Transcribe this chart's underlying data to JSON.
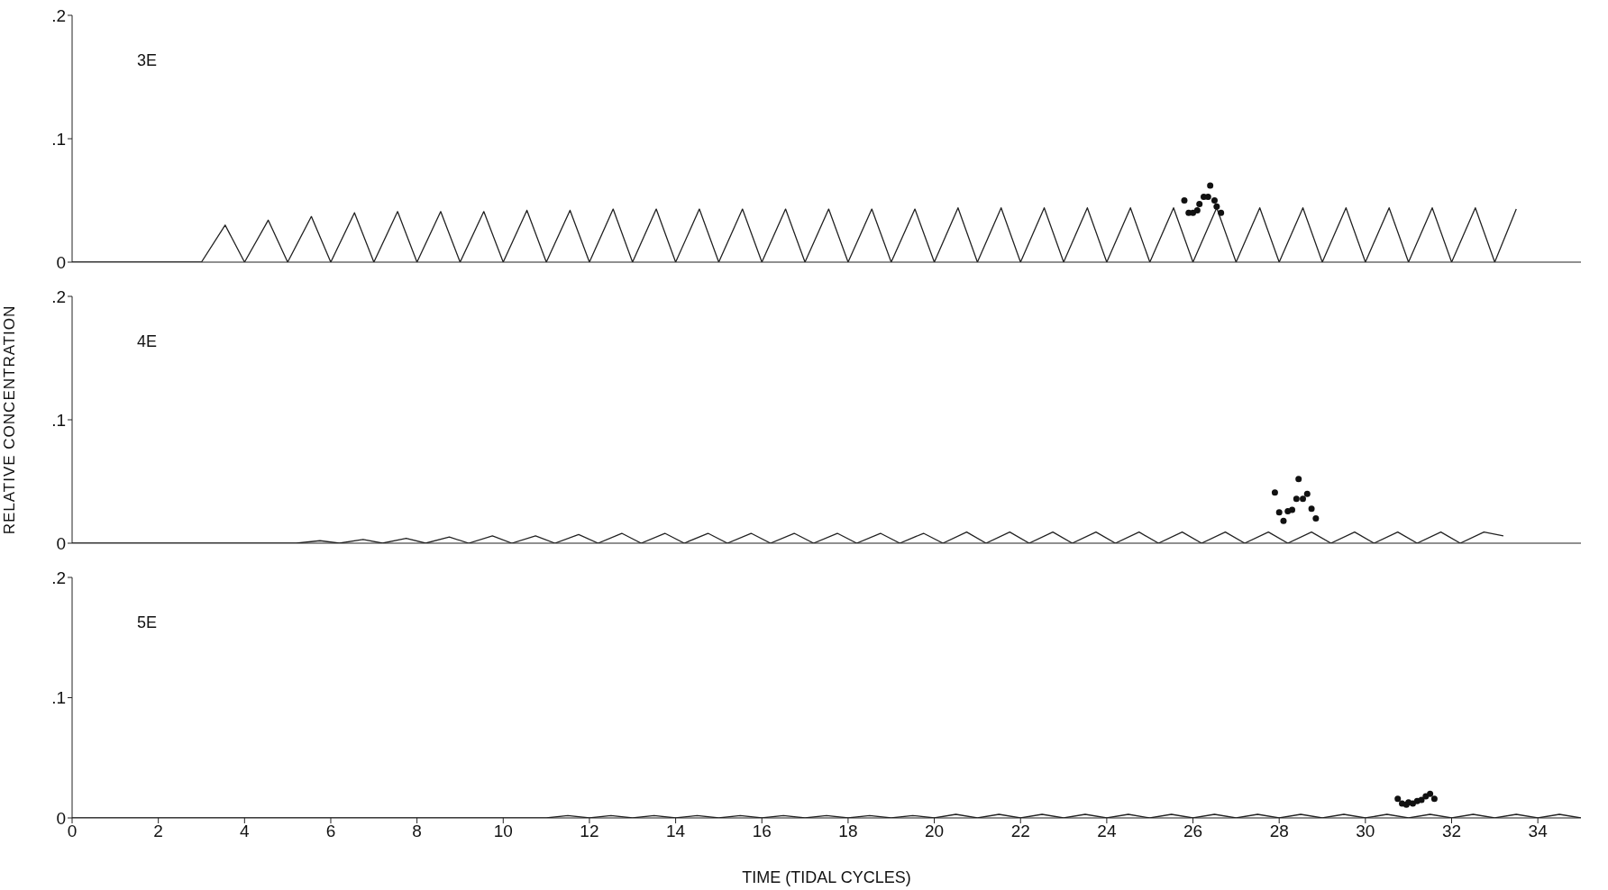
{
  "chart_data": [
    {
      "type": "line",
      "title": "3E",
      "xlim": [
        0,
        35
      ],
      "ylim": [
        0,
        0.2
      ],
      "yticks": [
        {
          "value": 0,
          "label": "0"
        },
        {
          "value": 0.1,
          "label": ".1"
        },
        {
          "value": 0.2,
          "label": ".2"
        }
      ],
      "tick_labels": "y",
      "series": [
        {
          "color": "#222222",
          "x": [
            0,
            3,
            3.55,
            4,
            4.55,
            5,
            5.55,
            6,
            6.55,
            7,
            7.55,
            8,
            8.55,
            9,
            9.55,
            10,
            10.55,
            11,
            11.55,
            12,
            12.55,
            13,
            13.55,
            14,
            14.55,
            15,
            15.55,
            16,
            16.55,
            17,
            17.55,
            18,
            18.55,
            19,
            19.55,
            20,
            20.55,
            21,
            21.55,
            22,
            22.55,
            23,
            23.55,
            24,
            24.55,
            25,
            25.55,
            26,
            26.55,
            27,
            27.55,
            28,
            28.55,
            29,
            29.55,
            30,
            30.55,
            31,
            31.55,
            32,
            32.55,
            33,
            33.5
          ],
          "values": [
            0,
            0,
            0.03,
            0,
            0.034,
            0,
            0.037,
            0,
            0.04,
            0,
            0.041,
            0,
            0.041,
            0,
            0.041,
            0,
            0.042,
            0,
            0.042,
            0,
            0.043,
            0,
            0.043,
            0,
            0.043,
            0,
            0.043,
            0,
            0.043,
            0,
            0.043,
            0,
            0.043,
            0,
            0.043,
            0,
            0.044,
            0,
            0.044,
            0,
            0.044,
            0,
            0.044,
            0,
            0.044,
            0,
            0.044,
            0,
            0.044,
            0,
            0.044,
            0,
            0.044,
            0,
            0.044,
            0,
            0.044,
            0,
            0.044,
            0,
            0.044,
            0,
            0.043
          ]
        },
        {
          "type": "scatter",
          "color": "#111111",
          "x": [
            25.8,
            25.9,
            26.0,
            26.1,
            26.15,
            26.25,
            26.35,
            26.4,
            26.5,
            26.55,
            26.65
          ],
          "values": [
            0.05,
            0.04,
            0.04,
            0.042,
            0.047,
            0.053,
            0.053,
            0.062,
            0.05,
            0.045,
            0.04
          ]
        }
      ]
    },
    {
      "type": "line",
      "title": "4E",
      "ylabel": "RELATIVE CONCENTRATION",
      "xlim": [
        0,
        35
      ],
      "ylim": [
        0,
        0.2
      ],
      "yticks": [
        {
          "value": 0,
          "label": "0"
        },
        {
          "value": 0.1,
          "label": ".1"
        },
        {
          "value": 0.2,
          "label": ".2"
        }
      ],
      "tick_labels": "y",
      "series": [
        {
          "color": "#222222",
          "x": [
            0,
            5.2,
            5.75,
            6.2,
            6.75,
            7.2,
            7.75,
            8.2,
            8.75,
            9.2,
            9.75,
            10.2,
            10.75,
            11.2,
            11.75,
            12.2,
            12.75,
            13.2,
            13.75,
            14.2,
            14.75,
            15.2,
            15.75,
            16.2,
            16.75,
            17.2,
            17.75,
            18.2,
            18.75,
            19.2,
            19.75,
            20.2,
            20.75,
            21.2,
            21.75,
            22.2,
            22.75,
            23.2,
            23.75,
            24.2,
            24.75,
            25.2,
            25.75,
            26.2,
            26.75,
            27.2,
            27.75,
            28.2,
            28.75,
            29.2,
            29.75,
            30.2,
            30.75,
            31.2,
            31.75,
            32.2,
            32.75,
            33.2
          ],
          "values": [
            0,
            0,
            0.002,
            0,
            0.003,
            0,
            0.004,
            0,
            0.005,
            0,
            0.006,
            0,
            0.006,
            0,
            0.007,
            0,
            0.008,
            0,
            0.008,
            0,
            0.008,
            0,
            0.008,
            0,
            0.008,
            0,
            0.008,
            0,
            0.008,
            0,
            0.008,
            0,
            0.009,
            0,
            0.009,
            0,
            0.009,
            0,
            0.009,
            0,
            0.009,
            0,
            0.009,
            0,
            0.009,
            0,
            0.009,
            0,
            0.009,
            0,
            0.009,
            0,
            0.009,
            0,
            0.009,
            0,
            0.009,
            0.006
          ]
        },
        {
          "type": "scatter",
          "color": "#111111",
          "x": [
            27.9,
            28.0,
            28.1,
            28.2,
            28.3,
            28.4,
            28.45,
            28.55,
            28.65,
            28.75,
            28.85
          ],
          "values": [
            0.041,
            0.025,
            0.018,
            0.026,
            0.027,
            0.036,
            0.052,
            0.036,
            0.04,
            0.028,
            0.02
          ]
        }
      ]
    },
    {
      "type": "line",
      "title": "5E",
      "xlabel": "TIME (TIDAL CYCLES)",
      "xlim": [
        0,
        35
      ],
      "xticks": [
        0,
        2,
        4,
        6,
        8,
        10,
        12,
        14,
        16,
        18,
        20,
        22,
        24,
        26,
        28,
        30,
        32,
        34
      ],
      "ylim": [
        0,
        0.2
      ],
      "yticks": [
        {
          "value": 0,
          "label": "0"
        },
        {
          "value": 0.1,
          "label": ".1"
        },
        {
          "value": 0.2,
          "label": ".2"
        }
      ],
      "series": [
        {
          "color": "#222222",
          "x": [
            0,
            11,
            11.5,
            12,
            12.5,
            13,
            13.5,
            14,
            14.5,
            15,
            15.5,
            16,
            16.5,
            17,
            17.5,
            18,
            18.5,
            19,
            19.5,
            20,
            20.5,
            21,
            21.5,
            22,
            22.5,
            23,
            23.5,
            24,
            24.5,
            25,
            25.5,
            26,
            26.5,
            27,
            27.5,
            28,
            28.5,
            29,
            29.5,
            30,
            30.5,
            31,
            31.5,
            32,
            32.5,
            33,
            33.5,
            34,
            34.5,
            35
          ],
          "values": [
            0,
            0,
            0.002,
            0,
            0.002,
            0,
            0.002,
            0,
            0.002,
            0,
            0.002,
            0,
            0.002,
            0,
            0.002,
            0,
            0.002,
            0,
            0.002,
            0,
            0.003,
            0,
            0.003,
            0,
            0.003,
            0,
            0.003,
            0,
            0.003,
            0,
            0.003,
            0,
            0.003,
            0,
            0.003,
            0,
            0.003,
            0,
            0.003,
            0,
            0.003,
            0,
            0.003,
            0,
            0.003,
            0,
            0.003,
            0,
            0.003,
            0
          ]
        },
        {
          "type": "scatter",
          "color": "#111111",
          "x": [
            30.75,
            30.85,
            30.95,
            31.0,
            31.1,
            31.2,
            31.3,
            31.4,
            31.5,
            31.6
          ],
          "values": [
            0.016,
            0.012,
            0.011,
            0.013,
            0.012,
            0.014,
            0.015,
            0.018,
            0.02,
            0.016
          ]
        }
      ]
    }
  ]
}
